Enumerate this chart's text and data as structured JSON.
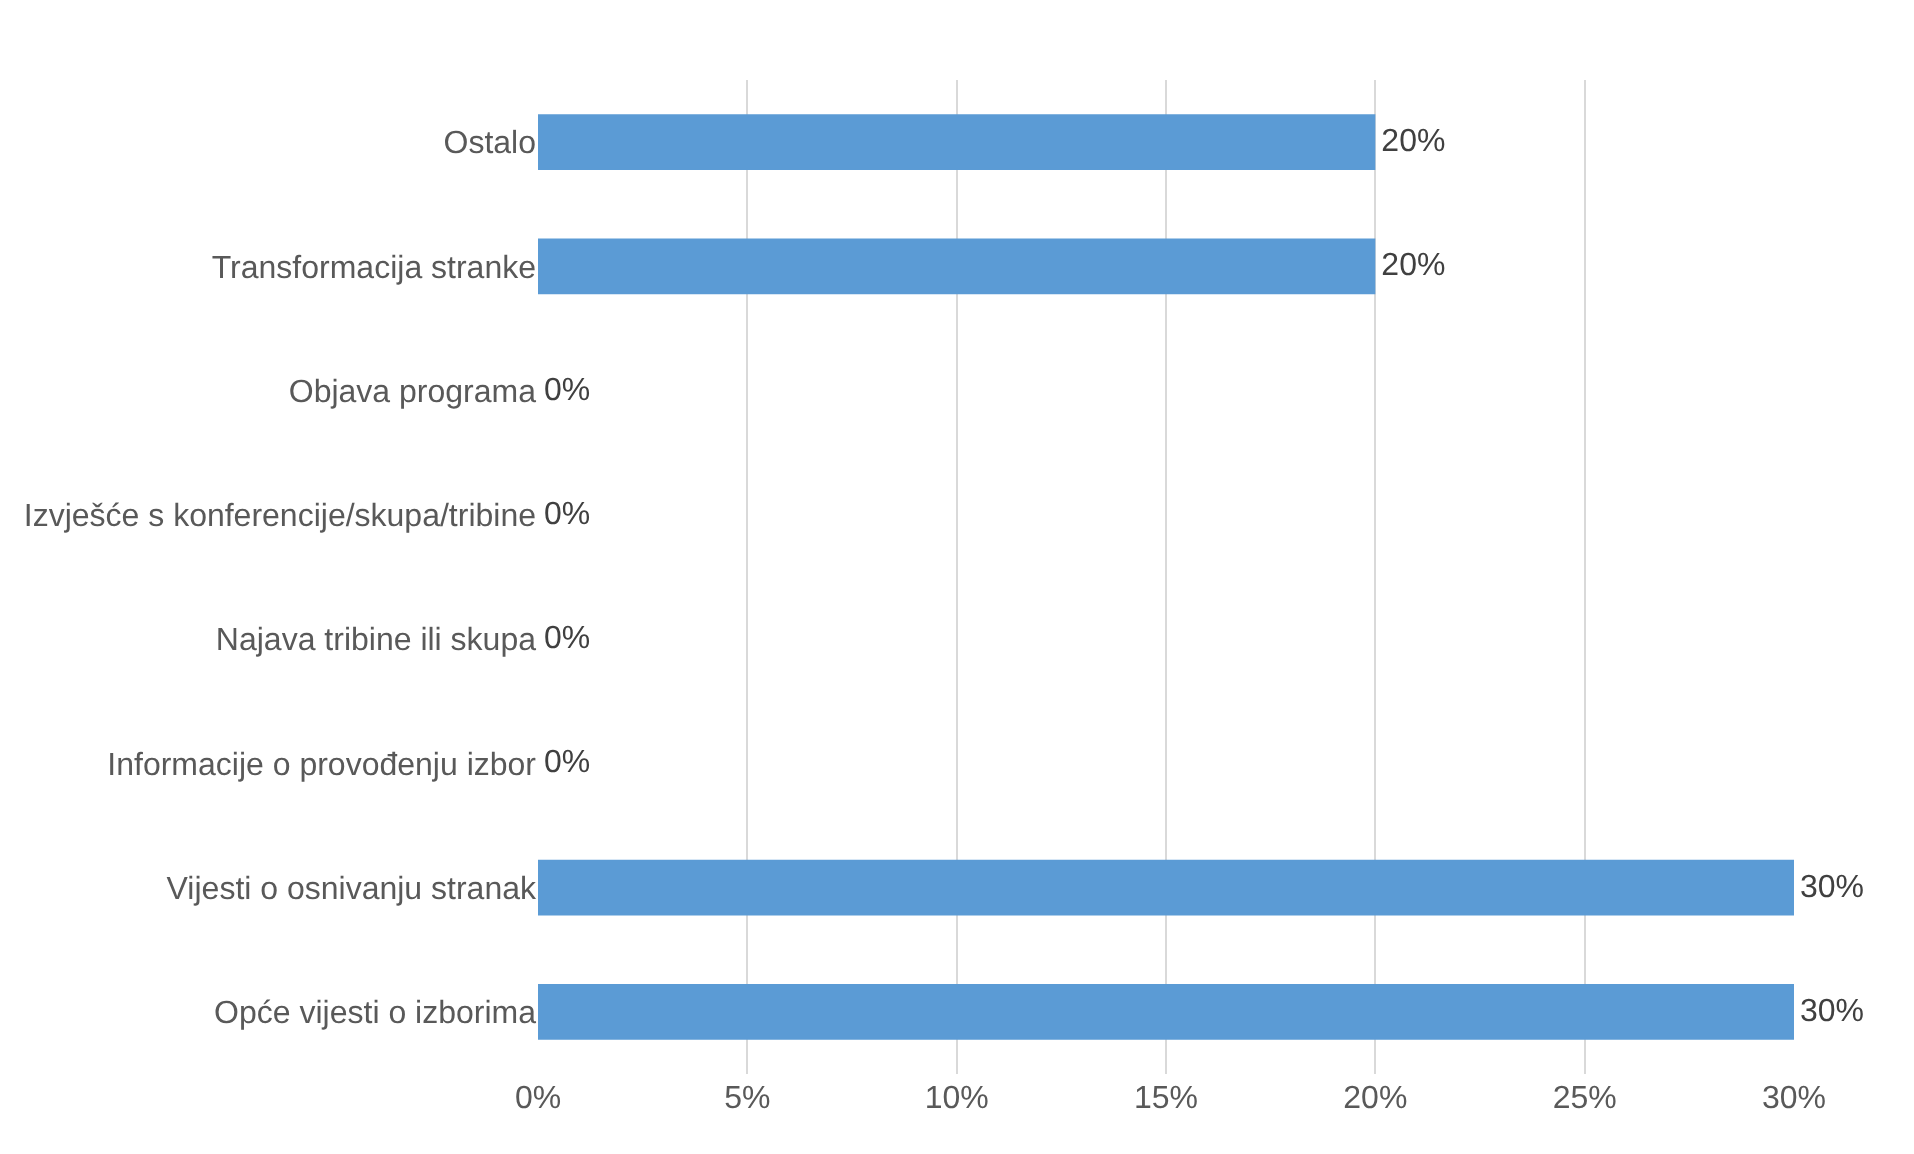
{
  "chart_data": {
    "type": "bar",
    "orientation": "horizontal",
    "categories": [
      "Ostalo",
      "Transformacija stranke",
      "Objava programa",
      "Izvješće s konferencije/skupa/tribine",
      "Najava tribine ili skupa",
      "Informacije o provođenju izbor",
      "Vijesti o osnivanju stranak",
      "Opće vijesti o izborima"
    ],
    "values": [
      20,
      20,
      0,
      0,
      0,
      0,
      30,
      30
    ],
    "value_labels": [
      "20%",
      "20%",
      "0%",
      "0%",
      "0%",
      "0%",
      "30%",
      "30%"
    ],
    "color": "#5b9bd5",
    "xlim": [
      0,
      30
    ],
    "xticks": [
      {
        "value": 0,
        "label": "0%"
      },
      {
        "value": 5,
        "label": "5%"
      },
      {
        "value": 10,
        "label": "10%"
      },
      {
        "value": 15,
        "label": "15%"
      },
      {
        "value": 20,
        "label": "20%"
      },
      {
        "value": 25,
        "label": "25%"
      },
      {
        "value": 30,
        "label": "30%"
      }
    ],
    "grid": "x",
    "legend": false
  }
}
